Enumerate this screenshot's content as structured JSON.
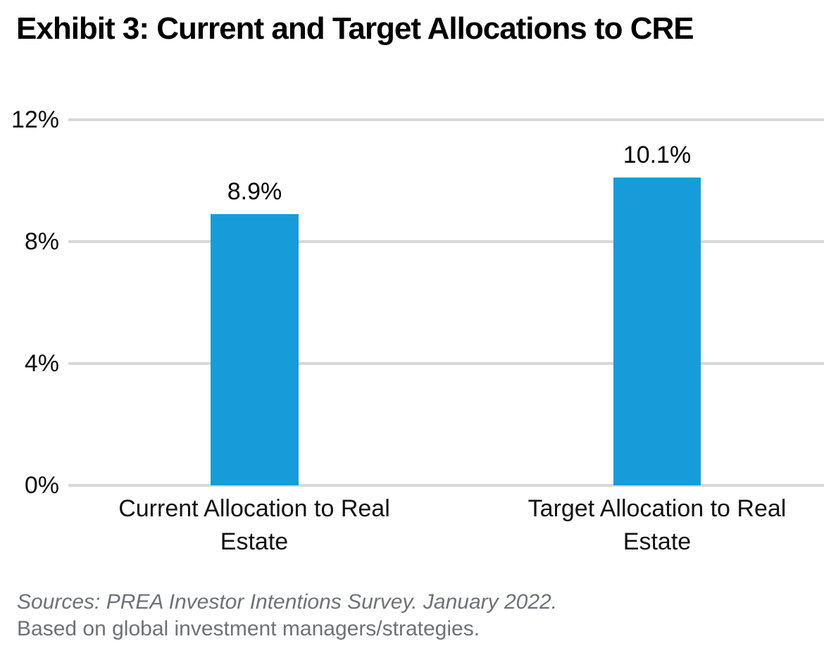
{
  "chart_data": {
    "type": "bar",
    "title": "Exhibit 3: Current and Target Allocations to CRE",
    "categories": [
      "Current Allocation to Real Estate",
      "Target Allocation to Real Estate"
    ],
    "values": [
      8.9,
      10.1
    ],
    "value_labels": [
      "8.9%",
      "10.1%"
    ],
    "xlabel": "",
    "ylabel": "",
    "ylim": [
      0,
      12
    ],
    "yticks": [
      {
        "value": 12,
        "label": "12%"
      },
      {
        "value": 8,
        "label": "8%"
      },
      {
        "value": 4,
        "label": "4%"
      },
      {
        "value": 0,
        "label": "0%"
      }
    ],
    "grid": true,
    "legend": false,
    "bar_color": "#189cd9",
    "gridline_color": "#d8d8d8"
  },
  "footer": {
    "line1": "Sources: PREA Investor Intentions Survey. January 2022.",
    "line2": "Based on global investment managers/strategies."
  }
}
